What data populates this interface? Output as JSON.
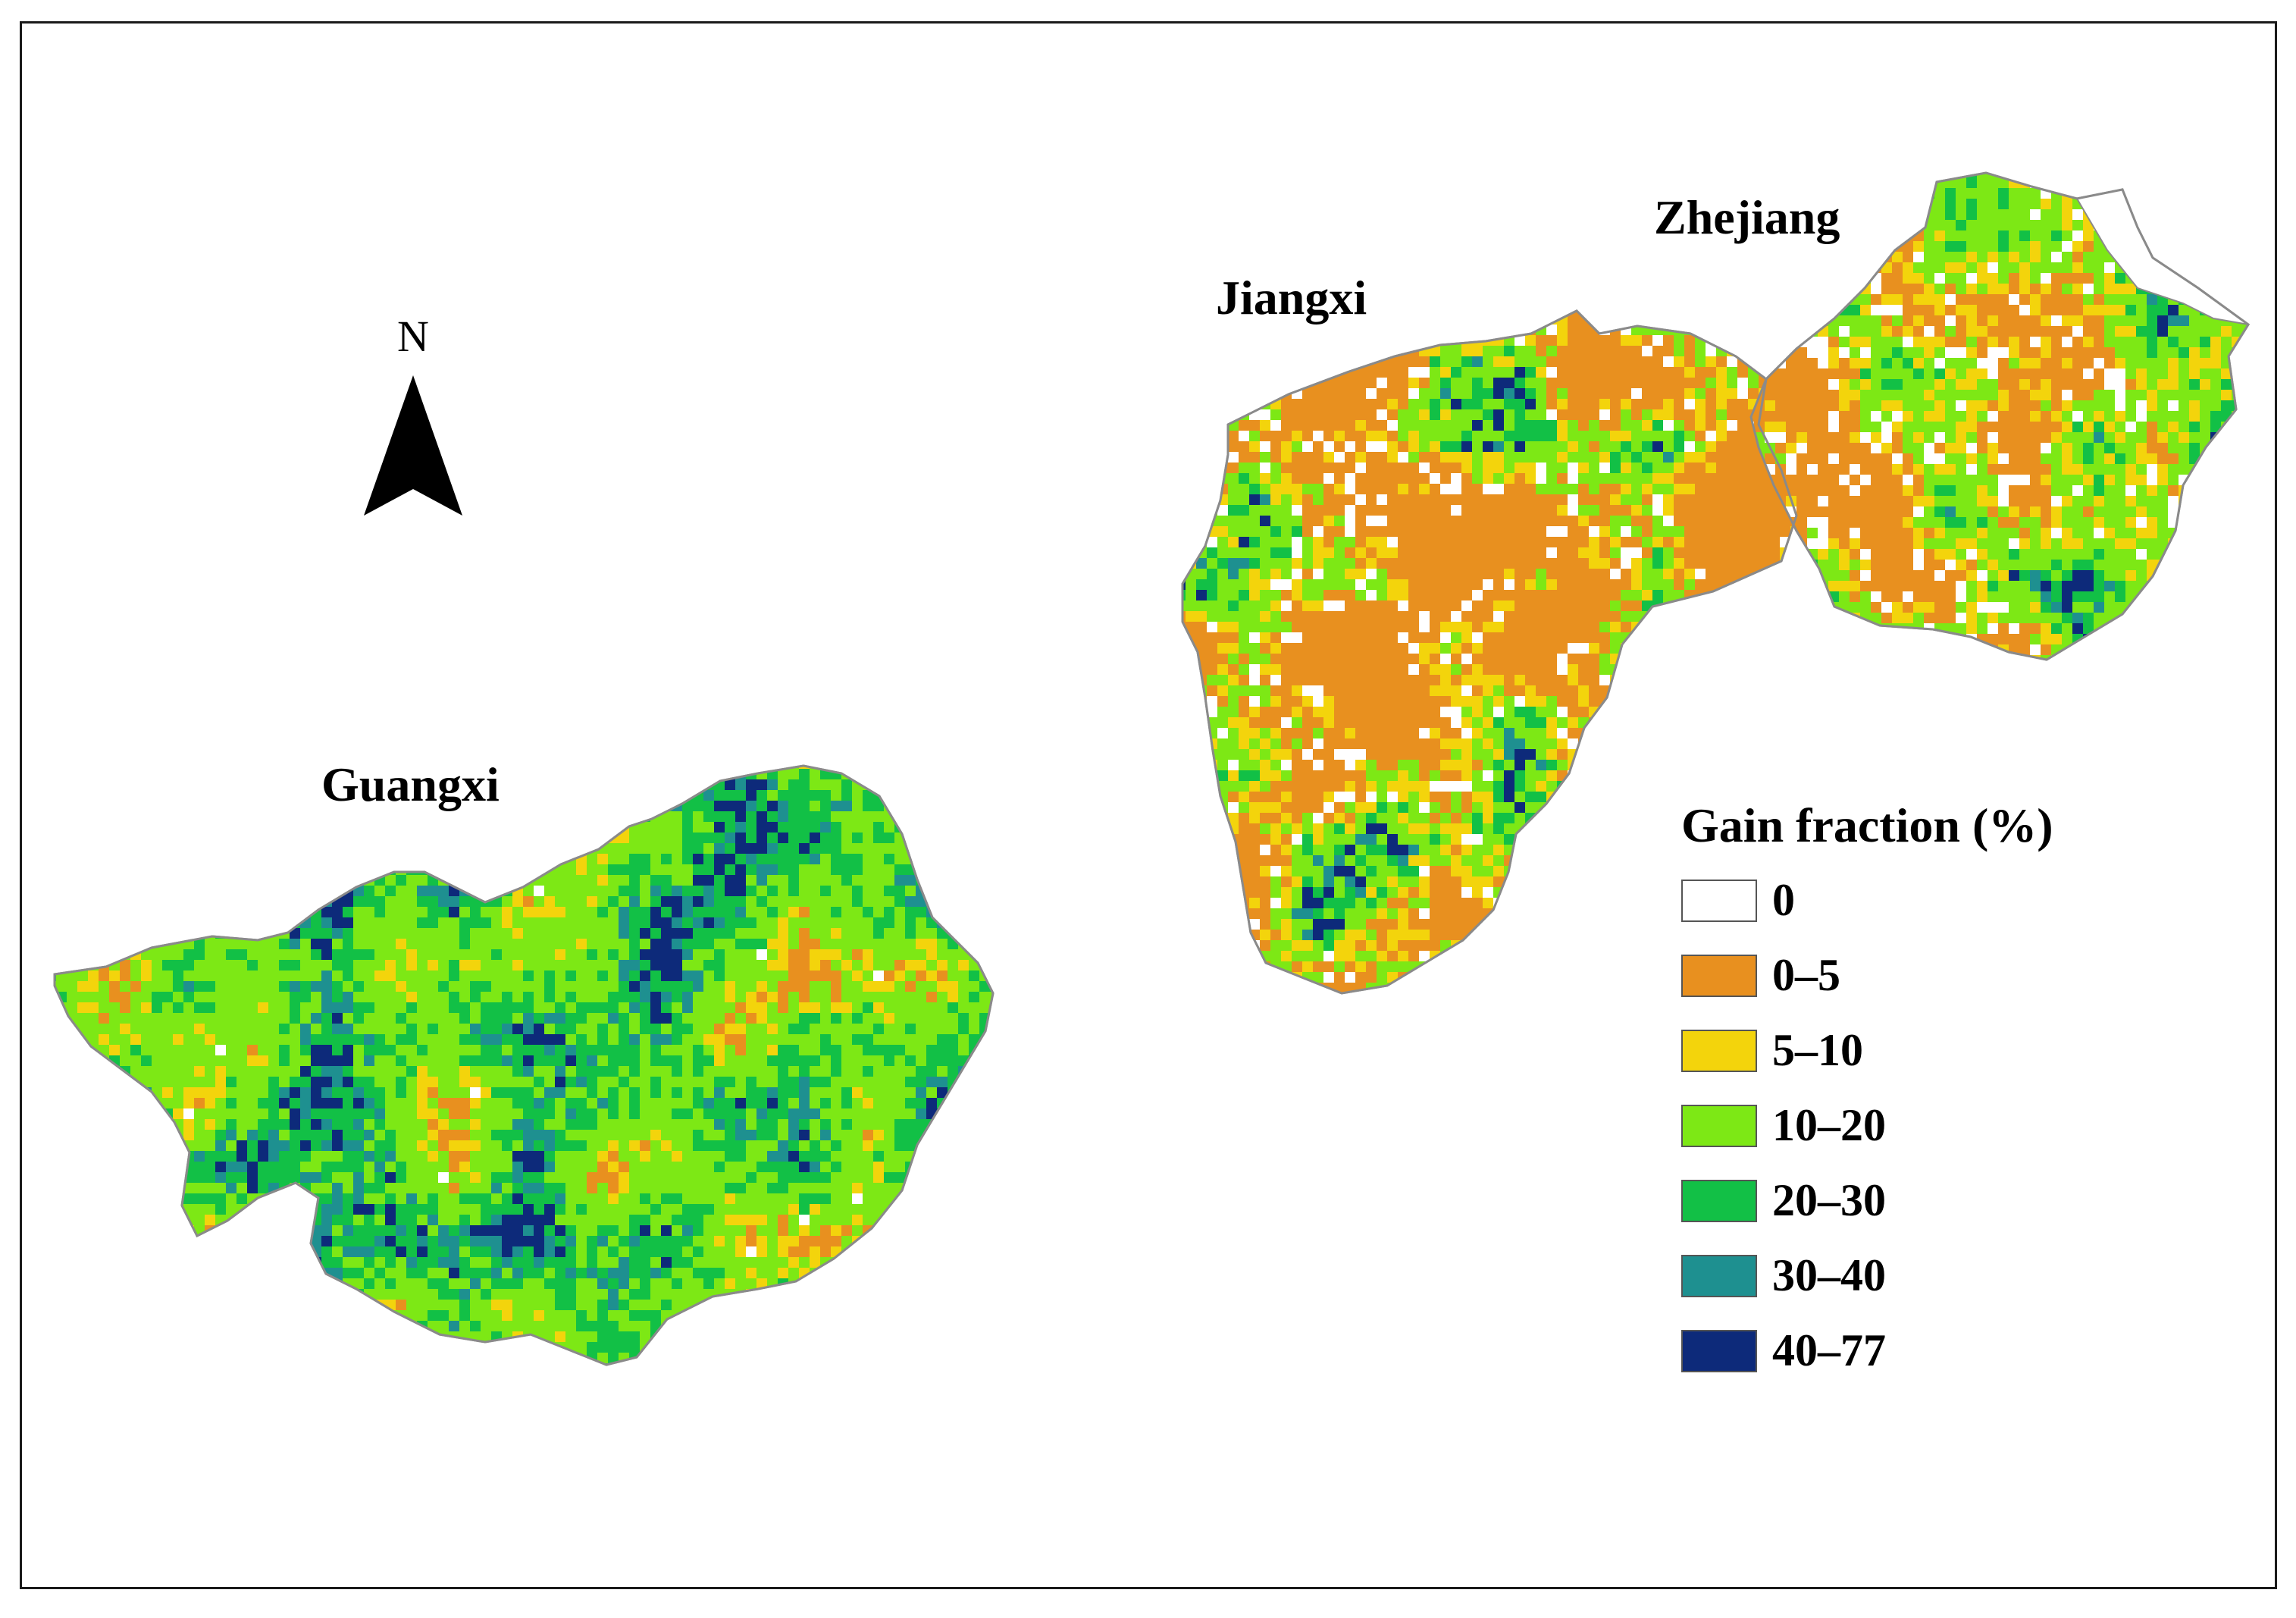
{
  "regions": [
    {
      "name": "Guangxi"
    },
    {
      "name": "Jiangxi"
    },
    {
      "name": "Zhejiang"
    }
  ],
  "north_arrow": {
    "label": "N"
  },
  "legend": {
    "title": "Gain fraction (%)",
    "classes": [
      {
        "label": "0",
        "color": "#ffffff"
      },
      {
        "label": "0–5",
        "color": "#e8901f"
      },
      {
        "label": "5–10",
        "color": "#f3d40c"
      },
      {
        "label": "10–20",
        "color": "#7de815"
      },
      {
        "label": "20–30",
        "color": "#12c046"
      },
      {
        "label": "30–40",
        "color": "#1e9090"
      },
      {
        "label": "40–77",
        "color": "#0d2a7a"
      }
    ]
  },
  "region_class_mix": {
    "Guangxi": {
      "0": 0.01,
      "0–5": 0.12,
      "5–10": 0.1,
      "10–20": 0.34,
      "20–30": 0.2,
      "30–40": 0.1,
      "40–77": 0.13
    },
    "Jiangxi": {
      "0": 0.05,
      "0–5": 0.45,
      "5–10": 0.1,
      "10–20": 0.22,
      "20–30": 0.12,
      "30–40": 0.04,
      "40–77": 0.02
    },
    "Zhejiang": {
      "0": 0.08,
      "0–5": 0.3,
      "5–10": 0.1,
      "10–20": 0.27,
      "20–30": 0.17,
      "30–40": 0.05,
      "40–77": 0.03
    }
  }
}
